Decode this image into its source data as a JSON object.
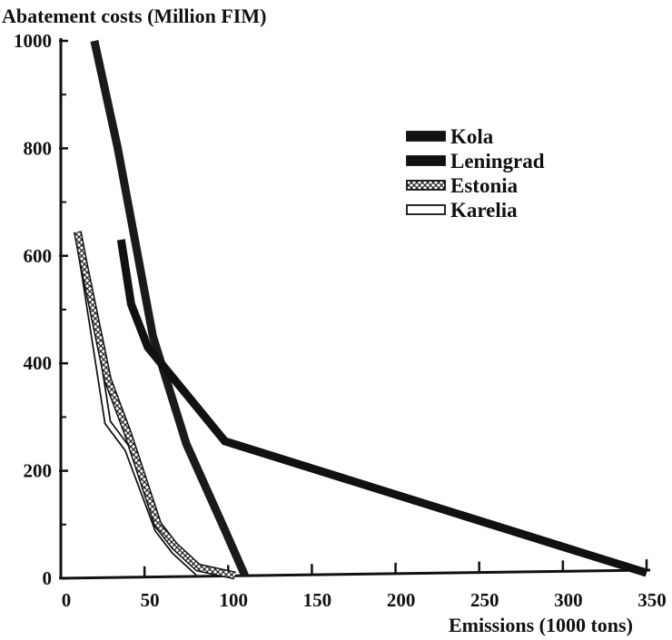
{
  "chart_data": {
    "type": "line",
    "title": "Abatement costs (Million FIM)",
    "xlabel": "Emissions (1000 tons)",
    "ylabel": "",
    "xlim": [
      0,
      350
    ],
    "ylim": [
      0,
      1000
    ],
    "x_ticks": [
      0,
      50,
      100,
      150,
      200,
      250,
      300,
      350
    ],
    "y_ticks": [
      0,
      200,
      400,
      600,
      800,
      1000
    ],
    "grid": false,
    "legend_position": "top-right",
    "series": [
      {
        "name": "Kola",
        "style": "solid-black",
        "color": "#111111",
        "points": [
          [
            36,
            630
          ],
          [
            42,
            510
          ],
          [
            52,
            430
          ],
          [
            98,
            255
          ],
          [
            350,
            10
          ]
        ]
      },
      {
        "name": "Leningrad",
        "style": "solid-black",
        "color": "#1a1a1a",
        "points": [
          [
            20,
            1000
          ],
          [
            34,
            800
          ],
          [
            55,
            450
          ],
          [
            75,
            250
          ],
          [
            98,
            90
          ],
          [
            110,
            5
          ]
        ]
      },
      {
        "name": "Estonia",
        "style": "hatched",
        "color": "#333333",
        "points": [
          [
            10,
            645
          ],
          [
            14,
            580
          ],
          [
            28,
            370
          ],
          [
            40,
            270
          ],
          [
            58,
            100
          ],
          [
            68,
            60
          ],
          [
            82,
            20
          ],
          [
            104,
            5
          ]
        ]
      },
      {
        "name": "Karelia",
        "style": "open",
        "color": "#ffffff",
        "points": [
          [
            10,
            645
          ],
          [
            14,
            570
          ],
          [
            28,
            290
          ],
          [
            40,
            240
          ],
          [
            58,
            90
          ],
          [
            68,
            50
          ],
          [
            82,
            10
          ]
        ]
      }
    ]
  }
}
